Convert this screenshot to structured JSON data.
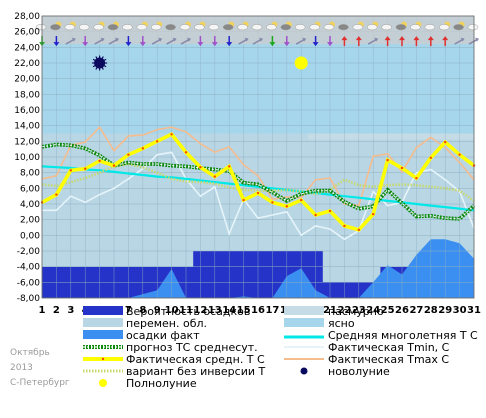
{
  "chart_data": {
    "type": "line",
    "title": "",
    "xlabel": "",
    "ylabel": "",
    "x": [
      1,
      2,
      3,
      4,
      5,
      6,
      7,
      8,
      9,
      10,
      11,
      12,
      13,
      14,
      15,
      16,
      17,
      18,
      19,
      20,
      21,
      22,
      23,
      24,
      25,
      26,
      27,
      28,
      29,
      30,
      31
    ],
    "x_tick_labels": [
      "1",
      "2",
      "3",
      "4",
      "5",
      "6",
      "7",
      "8",
      "9",
      "10",
      "11",
      "12",
      "13",
      "14",
      "15",
      "16",
      "17",
      "18",
      "19",
      "20",
      "21",
      "22",
      "23",
      "24",
      "25",
      "26",
      "27",
      "28",
      "29",
      "30",
      "31"
    ],
    "ylim": [
      -8,
      28
    ],
    "y_ticks": [
      "28,00",
      "26,00",
      "24,00",
      "22,00",
      "20,00",
      "18,00",
      "16,00",
      "14,00",
      "12,00",
      "10,00",
      "8,00",
      "6,00",
      "4,00",
      "2,00",
      "0,00",
      "-2,00",
      "-4,00",
      "-6,00",
      "-8,00"
    ],
    "grid": true,
    "overcast_band_top": [
      13,
      13,
      13,
      13,
      13,
      13,
      13,
      13,
      13,
      13,
      13,
      13,
      13,
      13,
      13,
      13,
      13,
      13,
      13,
      13,
      13,
      13,
      13,
      13,
      13,
      13,
      13,
      13,
      13,
      13,
      13
    ],
    "precip_probability_top": [
      -4,
      -4,
      -4,
      -4,
      -4,
      -4,
      -4,
      -4,
      -4,
      -4,
      -4,
      -2,
      -2,
      -2,
      -2,
      -2,
      -2,
      -2,
      -2,
      -2,
      -6,
      -6,
      -6,
      -6,
      -4,
      -4,
      -4,
      -4,
      -4,
      -4,
      -4
    ],
    "precip_actual_top": [
      -8,
      -8,
      -8,
      -8,
      -8,
      -8,
      -8,
      -7.5,
      -7,
      -4.3,
      -8,
      -8,
      -8,
      -8,
      -7.8,
      -8,
      -8,
      -5.2,
      -4.2,
      -7,
      -8,
      -8,
      -8,
      -6,
      -3.8,
      -5,
      -2.5,
      -0.5,
      -0.5,
      -1,
      -3
    ],
    "series": [
      {
        "name": "прогноз ТС среднесут.",
        "values": [
          11.3,
          11.6,
          11.5,
          11.1,
          10.2,
          8.9,
          9.3,
          9.1,
          9.1,
          8.9,
          8.8,
          8.6,
          8.4,
          8.2,
          6.7,
          6.5,
          5.5,
          4.4,
          5.3,
          5.7,
          5.7,
          4.3,
          3.4,
          3.7,
          5.8,
          4.1,
          2.4,
          2.5,
          2.2,
          2.1,
          3.8
        ],
        "color": "#0d8a0d"
      },
      {
        "name": "Средняя многолетняя Т С",
        "values": [
          8.8,
          8.7,
          8.6,
          8.4,
          8.3,
          8.1,
          7.9,
          7.7,
          7.5,
          7.4,
          7.2,
          7.0,
          6.8,
          6.6,
          6.4,
          6.2,
          6.0,
          5.8,
          5.6,
          5.4,
          5.2,
          5.0,
          4.8,
          4.6,
          4.4,
          4.2,
          4.0,
          3.8,
          3.6,
          3.4,
          3.2
        ],
        "color": "#00e8e8"
      },
      {
        "name": "Фактическая Tmin, С",
        "values": [
          3.2,
          3.2,
          5.0,
          4.2,
          5.2,
          6.0,
          7.2,
          8.5,
          10.3,
          10.6,
          7.2,
          5.0,
          6.2,
          0.2,
          4.6,
          2.2,
          2.6,
          3.0,
          0.0,
          1.2,
          0.8,
          -0.5,
          0.6,
          5.6,
          3.8,
          4.2,
          8.0,
          8.4,
          7.1,
          5.6,
          0.9
        ],
        "color": "#e6f4fa"
      },
      {
        "name": "Фактическая Tmax С",
        "values": [
          7.2,
          7.6,
          11.5,
          11.9,
          13.8,
          10.8,
          12.7,
          12.8,
          13.5,
          13.8,
          13.2,
          11.7,
          10.6,
          11.3,
          9.0,
          7.6,
          4.6,
          4.9,
          4.8,
          7.1,
          7.3,
          4.0,
          3.8,
          10.1,
          10.4,
          8.1,
          11.2,
          12.5,
          11.2,
          9.3,
          7.1
        ],
        "color": "#f5bc8e"
      },
      {
        "name": "Фактическая средн. Т С",
        "values": [
          4.2,
          5.2,
          8.3,
          8.5,
          9.5,
          8.9,
          10.3,
          11.1,
          12.0,
          12.9,
          10.6,
          8.7,
          7.5,
          8.8,
          4.5,
          5.4,
          4.2,
          3.7,
          4.5,
          2.6,
          3.1,
          1.2,
          0.7,
          2.7,
          9.6,
          8.6,
          7.3,
          9.9,
          11.9,
          10.3,
          8.9
        ],
        "color": "#ffff00"
      },
      {
        "name": "вариант без инверсии Т",
        "values": [
          6.5,
          6.3,
          6.8,
          7.3,
          8.0,
          8.8,
          9.1,
          8.7,
          8.0,
          7.2,
          6.9,
          6.8,
          6.6,
          6.1,
          5.8,
          5.7,
          5.7,
          5.8,
          5.6,
          5.3,
          5.8,
          7.1,
          6.4,
          6.2,
          6.4,
          6.5,
          6.4,
          6.2,
          6.0,
          5.7,
          4.4
        ],
        "color": "#c8d870"
      }
    ],
    "moon": {
      "full_moon_day": 19,
      "new_moon_day": 5,
      "symbol_y": 22
    },
    "wind_arrow_colors": [
      "#1aa81a",
      "#2222cc",
      "#8888aa",
      "#a050c8",
      "#8888aa",
      "#8888aa",
      "#2222cc",
      "#a050c8",
      "#8888aa",
      "#8888aa",
      "#8888aa",
      "#a050c8",
      "#a050c8",
      "#2222cc",
      "#8888aa",
      "#8888aa",
      "#1aa81a",
      "#a050c8",
      "#8888aa",
      "#2222cc",
      "#a050c8",
      "#e03030",
      "#e03030",
      "#8888aa",
      "#e03030",
      "#e03030",
      "#e03030",
      "#e03030",
      "#e03030",
      "#8888aa",
      "#8888aa"
    ],
    "legend_placement": "bottom"
  },
  "legend": {
    "col1": [
      "Вероятность осадков",
      "перемен. обл.",
      "осадки факт",
      "прогноз ТС среднесут.",
      "Фактическая средн. Т С",
      "вариант без инверсии Т",
      "Полнолуние"
    ],
    "col2": [
      "пасмурно",
      "ясно",
      "Средняя многолетняя Т С",
      "Фактическая Tmin, С",
      "Фактическая Tmax С",
      "новолуние"
    ]
  },
  "notes": {
    "month": "Октябрь",
    "year": "2013",
    "city": "С-Петербург"
  },
  "colors": {
    "clear_sky": "#a6d6ec",
    "overcast": "#c5dce6",
    "variable_cloud": "#b8d6e4",
    "precip_probability": "#2633c8",
    "precip_actual": "#3b8ff0",
    "strip": "#cccccc"
  }
}
